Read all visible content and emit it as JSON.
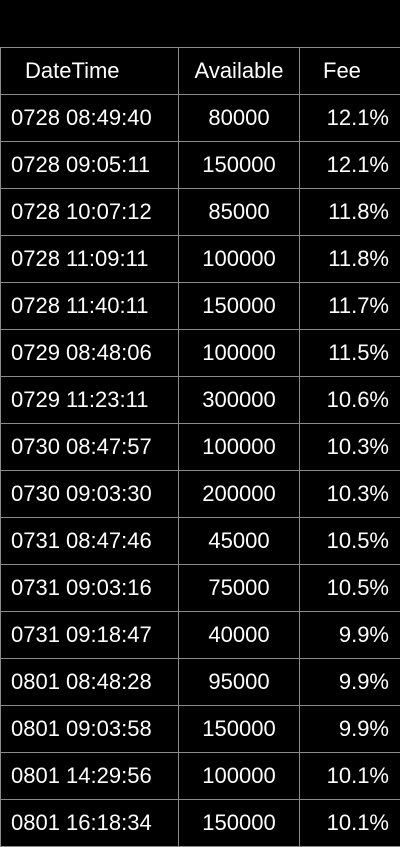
{
  "columns": {
    "datetime": "DateTime",
    "available": "Available",
    "fee": "Fee"
  },
  "rows": [
    {
      "datetime": "0728 08:49:40",
      "available": "80000",
      "fee": "12.1%"
    },
    {
      "datetime": "0728 09:05:11",
      "available": "150000",
      "fee": "12.1%"
    },
    {
      "datetime": "0728 10:07:12",
      "available": "85000",
      "fee": "11.8%"
    },
    {
      "datetime": "0728 11:09:11",
      "available": "100000",
      "fee": "11.8%"
    },
    {
      "datetime": "0728 11:40:11",
      "available": "150000",
      "fee": "11.7%"
    },
    {
      "datetime": "0729 08:48:06",
      "available": "100000",
      "fee": "11.5%"
    },
    {
      "datetime": "0729 11:23:11",
      "available": "300000",
      "fee": "10.6%"
    },
    {
      "datetime": "0730 08:47:57",
      "available": "100000",
      "fee": "10.3%"
    },
    {
      "datetime": "0730 09:03:30",
      "available": "200000",
      "fee": "10.3%"
    },
    {
      "datetime": "0731 08:47:46",
      "available": "45000",
      "fee": "10.5%"
    },
    {
      "datetime": "0731 09:03:16",
      "available": "75000",
      "fee": "10.5%"
    },
    {
      "datetime": "0731 09:18:47",
      "available": "40000",
      "fee": "9.9%"
    },
    {
      "datetime": "0801 08:48:28",
      "available": "95000",
      "fee": "9.9%"
    },
    {
      "datetime": "0801 09:03:58",
      "available": "150000",
      "fee": "9.9%"
    },
    {
      "datetime": "0801 14:29:56",
      "available": "100000",
      "fee": "10.1%"
    },
    {
      "datetime": "0801 16:18:34",
      "available": "150000",
      "fee": "10.1%"
    }
  ]
}
